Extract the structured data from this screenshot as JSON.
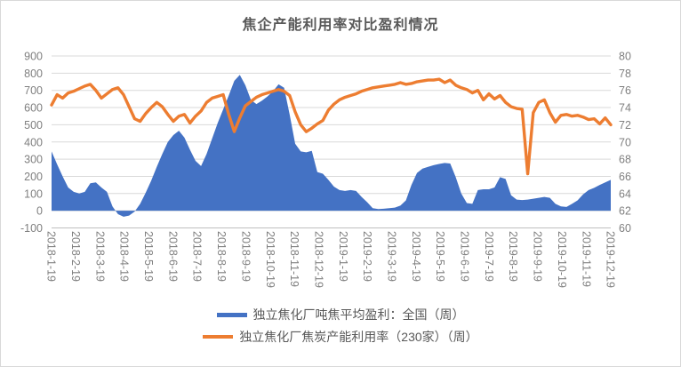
{
  "title": "焦企产能利用率对比盈利情况",
  "colors": {
    "area_series": "#4472C4",
    "line_series": "#ED7D31",
    "gridline": "#D9D9D9",
    "axis_line": "#BFBFBF",
    "tick_text": "#7F7F7F",
    "title_text": "#595959",
    "legend_text": "#595959",
    "chart_border": "#D9D9D9",
    "background": "#FFFFFF"
  },
  "legend": {
    "items": [
      {
        "label": "独立焦化厂吨焦平均盈利：全国（周）",
        "marker": "area-swatch",
        "color": "#4472C4"
      },
      {
        "label": "独立焦化厂焦炭产能利用率（230家）（周）",
        "marker": "line-swatch",
        "color": "#ED7D31"
      }
    ]
  },
  "chart_data": {
    "type": "combo-area-line",
    "title": "焦企产能利用率对比盈利情况",
    "grid": true,
    "legend_position": "bottom",
    "left_axis": {
      "min": -100,
      "max": 900,
      "step": 100,
      "ticks": [
        900,
        800,
        700,
        600,
        500,
        400,
        300,
        200,
        100,
        0,
        -100
      ]
    },
    "right_axis": {
      "min": 60,
      "max": 80,
      "step": 2,
      "ticks": [
        80,
        78,
        76,
        74,
        72,
        70,
        68,
        66,
        64,
        62,
        60
      ]
    },
    "x_tick_labels": [
      "2018-1-19",
      "2018-2-19",
      "2018-3-19",
      "2018-4-19",
      "2018-5-19",
      "2018-6-19",
      "2018-7-19",
      "2018-8-19",
      "2018-9-19",
      "2018-10-19",
      "2018-11-19",
      "2018-12-19",
      "2019-1-19",
      "2019-2-19",
      "2019-3-19",
      "2019-4-19",
      "2019-5-19",
      "2019-6-19",
      "2019-7-19",
      "2019-8-19",
      "2019-9-19",
      "2019-10-19",
      "2019-11-19",
      "2019-12-19"
    ],
    "series": [
      {
        "name": "独立焦化厂吨焦平均盈利：全国（周）",
        "type": "area",
        "axis": "left",
        "color": "#4472C4",
        "values": [
          345,
          270,
          200,
          135,
          110,
          100,
          110,
          160,
          165,
          135,
          110,
          25,
          -20,
          -35,
          -28,
          -5,
          40,
          105,
          175,
          255,
          330,
          400,
          440,
          465,
          425,
          355,
          290,
          260,
          330,
          420,
          510,
          590,
          670,
          755,
          790,
          730,
          645,
          620,
          640,
          665,
          695,
          735,
          715,
          560,
          390,
          345,
          340,
          348,
          225,
          215,
          180,
          140,
          120,
          115,
          120,
          115,
          80,
          50,
          15,
          10,
          12,
          15,
          18,
          30,
          60,
          150,
          220,
          245,
          255,
          265,
          272,
          278,
          275,
          195,
          100,
          45,
          40,
          120,
          125,
          125,
          135,
          195,
          185,
          90,
          65,
          62,
          65,
          70,
          75,
          80,
          75,
          40,
          25,
          22,
          40,
          60,
          95,
          120,
          133,
          150,
          165,
          180
        ]
      },
      {
        "name": "独立焦化厂焦炭产能利用率（230家）（周）",
        "type": "line",
        "axis": "right",
        "color": "#ED7D31",
        "values": [
          74.3,
          75.5,
          75.1,
          75.7,
          75.9,
          76.2,
          76.5,
          76.7,
          76.0,
          75.1,
          75.6,
          76.1,
          76.3,
          75.5,
          74.1,
          72.7,
          72.4,
          73.3,
          74.0,
          74.6,
          74.1,
          73.2,
          72.4,
          73.0,
          73.2,
          72.2,
          73.0,
          73.6,
          74.6,
          75.1,
          75.3,
          75.5,
          73.2,
          71.2,
          72.8,
          74.2,
          74.7,
          75.2,
          75.5,
          75.7,
          75.9,
          76.1,
          75.9,
          75.4,
          73.5,
          72.0,
          71.2,
          71.6,
          72.1,
          72.5,
          73.7,
          74.4,
          74.9,
          75.2,
          75.4,
          75.6,
          75.9,
          76.1,
          76.3,
          76.4,
          76.5,
          76.6,
          76.7,
          76.9,
          76.7,
          76.8,
          77.0,
          77.1,
          77.2,
          77.2,
          77.3,
          76.9,
          77.2,
          76.6,
          76.3,
          76.1,
          75.7,
          76.0,
          74.9,
          75.6,
          75.0,
          75.4,
          74.6,
          74.1,
          73.9,
          73.8,
          66.3,
          73.4,
          74.6,
          74.9,
          73.4,
          72.3,
          73.1,
          73.2,
          73.0,
          73.1,
          72.9,
          72.6,
          72.7,
          72.1,
          72.8,
          72.0
        ]
      }
    ]
  }
}
